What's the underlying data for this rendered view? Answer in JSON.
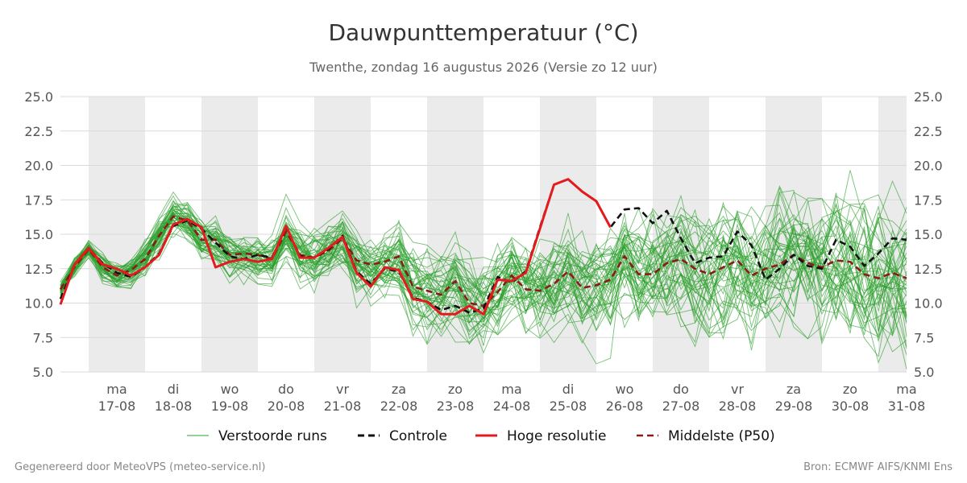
{
  "chart_data": {
    "type": "line",
    "title": "Dauwpunttemperatuur (°C)",
    "subtitle": "Twenthe, zondag 16 augustus 2026 (Versie zo 12 uur)",
    "xlabel": "",
    "ylabel": "",
    "x_range": [
      "2026-08-16T12:00",
      "2026-08-31T12:00"
    ],
    "ylim": [
      5.0,
      25.0
    ],
    "y_ticks": [
      "5.0",
      "7.5",
      "10.0",
      "12.5",
      "15.0",
      "17.5",
      "20.0",
      "22.5",
      "25.0"
    ],
    "x_ticks": [
      {
        "date": "2026-08-17",
        "day": "ma",
        "label": "17-08"
      },
      {
        "date": "2026-08-18",
        "day": "di",
        "label": "18-08"
      },
      {
        "date": "2026-08-19",
        "day": "wo",
        "label": "19-08"
      },
      {
        "date": "2026-08-20",
        "day": "do",
        "label": "20-08"
      },
      {
        "date": "2026-08-21",
        "day": "vr",
        "label": "21-08"
      },
      {
        "date": "2026-08-22",
        "day": "za",
        "label": "22-08"
      },
      {
        "date": "2026-08-23",
        "day": "zo",
        "label": "23-08"
      },
      {
        "date": "2026-08-24",
        "day": "ma",
        "label": "24-08"
      },
      {
        "date": "2026-08-25",
        "day": "di",
        "label": "25-08"
      },
      {
        "date": "2026-08-26",
        "day": "wo",
        "label": "26-08"
      },
      {
        "date": "2026-08-27",
        "day": "do",
        "label": "27-08"
      },
      {
        "date": "2026-08-28",
        "day": "vr",
        "label": "28-08"
      },
      {
        "date": "2026-08-29",
        "day": "za",
        "label": "29-08"
      },
      {
        "date": "2026-08-30",
        "day": "zo",
        "label": "30-08"
      },
      {
        "date": "2026-08-31",
        "day": "ma",
        "label": "31-08"
      }
    ],
    "shaded_days": [
      "2026-08-17",
      "2026-08-19",
      "2026-08-21",
      "2026-08-23",
      "2026-08-25",
      "2026-08-27",
      "2026-08-29",
      "2026-08-31"
    ],
    "grid": true,
    "legend_position": "bottom",
    "series": [
      {
        "name": "Controle",
        "color": "#111111",
        "style": "dashed",
        "x": [
          "2026-08-16T12:00",
          "2026-08-16T18:00",
          "2026-08-17T00:00",
          "2026-08-17T06:00",
          "2026-08-17T12:00",
          "2026-08-17T18:00",
          "2026-08-18T00:00",
          "2026-08-18T06:00",
          "2026-08-18T12:00",
          "2026-08-18T18:00",
          "2026-08-19T00:00",
          "2026-08-19T06:00",
          "2026-08-19T12:00",
          "2026-08-19T18:00",
          "2026-08-20T00:00",
          "2026-08-20T06:00",
          "2026-08-20T12:00",
          "2026-08-20T18:00",
          "2026-08-21T00:00",
          "2026-08-21T06:00",
          "2026-08-21T12:00",
          "2026-08-21T18:00",
          "2026-08-22T00:00",
          "2026-08-22T06:00",
          "2026-08-22T12:00",
          "2026-08-22T18:00",
          "2026-08-23T00:00",
          "2026-08-23T06:00",
          "2026-08-23T12:00",
          "2026-08-23T18:00",
          "2026-08-24T00:00",
          "2026-08-24T06:00",
          "2026-08-24T12:00",
          "2026-08-24T18:00",
          "2026-08-25T00:00",
          "2026-08-25T06:00",
          "2026-08-25T12:00",
          "2026-08-25T18:00",
          "2026-08-26T00:00",
          "2026-08-26T06:00",
          "2026-08-26T12:00",
          "2026-08-26T18:00",
          "2026-08-27T00:00",
          "2026-08-27T06:00",
          "2026-08-27T12:00",
          "2026-08-27T18:00",
          "2026-08-28T00:00",
          "2026-08-28T06:00",
          "2026-08-28T12:00",
          "2026-08-28T18:00",
          "2026-08-29T00:00",
          "2026-08-29T06:00",
          "2026-08-29T12:00",
          "2026-08-29T18:00",
          "2026-08-30T00:00",
          "2026-08-30T06:00",
          "2026-08-30T12:00",
          "2026-08-30T18:00",
          "2026-08-31T00:00",
          "2026-08-31T06:00",
          "2026-08-31T12:00"
        ],
        "values": [
          10.3,
          12.8,
          14.0,
          12.9,
          12.2,
          11.9,
          12.6,
          13.6,
          15.6,
          16.0,
          15.4,
          14.4,
          13.4,
          13.2,
          13.5,
          13.3,
          15.5,
          13.4,
          13.3,
          13.9,
          14.9,
          12.3,
          11.4,
          12.5,
          12.3,
          10.4,
          10.1,
          9.5,
          9.8,
          9.3,
          9.6,
          11.9,
          11.5,
          12.3,
          15.5,
          18.6,
          19.0,
          18.1,
          17.4,
          15.5,
          16.8,
          16.9,
          15.8,
          16.7,
          14.7,
          12.9,
          13.3,
          13.4,
          15.2,
          14.2,
          11.7,
          12.5,
          13.5,
          12.7,
          12.5,
          14.6,
          14.1,
          12.7,
          13.6,
          14.7,
          14.6
        ]
      },
      {
        "name": "Hoge resolutie",
        "color": "#e41a1c",
        "style": "solid",
        "x": [
          "2026-08-16T12:00",
          "2026-08-16T18:00",
          "2026-08-17T00:00",
          "2026-08-17T06:00",
          "2026-08-17T12:00",
          "2026-08-17T18:00",
          "2026-08-18T00:00",
          "2026-08-18T06:00",
          "2026-08-18T12:00",
          "2026-08-18T18:00",
          "2026-08-19T00:00",
          "2026-08-19T06:00",
          "2026-08-19T12:00",
          "2026-08-19T18:00",
          "2026-08-20T00:00",
          "2026-08-20T06:00",
          "2026-08-20T12:00",
          "2026-08-20T18:00",
          "2026-08-21T00:00",
          "2026-08-21T06:00",
          "2026-08-21T12:00",
          "2026-08-21T18:00",
          "2026-08-22T00:00",
          "2026-08-22T06:00",
          "2026-08-22T12:00",
          "2026-08-22T18:00",
          "2026-08-23T00:00",
          "2026-08-23T06:00",
          "2026-08-23T12:00",
          "2026-08-23T18:00",
          "2026-08-24T00:00",
          "2026-08-24T06:00",
          "2026-08-24T12:00",
          "2026-08-24T18:00",
          "2026-08-25T00:00",
          "2026-08-25T06:00",
          "2026-08-25T12:00",
          "2026-08-25T18:00",
          "2026-08-26T00:00",
          "2026-08-26T06:00"
        ],
        "values": [
          9.9,
          12.8,
          14.0,
          12.8,
          12.5,
          12.0,
          12.6,
          13.5,
          15.7,
          16.1,
          15.5,
          12.6,
          13.0,
          13.2,
          13.0,
          13.2,
          15.6,
          13.3,
          13.3,
          14.0,
          14.8,
          12.2,
          11.2,
          12.6,
          12.4,
          10.3,
          10.1,
          9.2,
          9.2,
          9.8,
          9.2,
          11.7,
          11.6,
          12.2,
          15.4,
          18.6,
          19.0,
          18.1,
          17.4,
          15.5
        ]
      },
      {
        "name": "Middelste (P50)",
        "color": "#8b1a1a",
        "style": "dashed",
        "x": [
          "2026-08-16T12:00",
          "2026-08-16T18:00",
          "2026-08-17T00:00",
          "2026-08-17T06:00",
          "2026-08-17T12:00",
          "2026-08-17T18:00",
          "2026-08-18T00:00",
          "2026-08-18T06:00",
          "2026-08-18T12:00",
          "2026-08-18T18:00",
          "2026-08-19T00:00",
          "2026-08-19T06:00",
          "2026-08-19T12:00",
          "2026-08-19T18:00",
          "2026-08-20T00:00",
          "2026-08-20T06:00",
          "2026-08-20T12:00",
          "2026-08-20T18:00",
          "2026-08-21T00:00",
          "2026-08-21T06:00",
          "2026-08-21T12:00",
          "2026-08-21T18:00",
          "2026-08-22T00:00",
          "2026-08-22T06:00",
          "2026-08-22T12:00",
          "2026-08-22T18:00",
          "2026-08-23T00:00",
          "2026-08-23T06:00",
          "2026-08-23T12:00",
          "2026-08-23T18:00",
          "2026-08-24T00:00",
          "2026-08-24T06:00",
          "2026-08-24T12:00",
          "2026-08-24T18:00",
          "2026-08-25T00:00",
          "2026-08-25T06:00",
          "2026-08-25T12:00",
          "2026-08-25T18:00",
          "2026-08-26T00:00",
          "2026-08-26T06:00",
          "2026-08-26T12:00",
          "2026-08-26T18:00",
          "2026-08-27T00:00",
          "2026-08-27T06:00",
          "2026-08-27T12:00",
          "2026-08-27T18:00",
          "2026-08-28T00:00",
          "2026-08-28T06:00",
          "2026-08-28T12:00",
          "2026-08-28T18:00",
          "2026-08-29T00:00",
          "2026-08-29T06:00",
          "2026-08-29T12:00",
          "2026-08-29T18:00",
          "2026-08-30T00:00",
          "2026-08-30T06:00",
          "2026-08-30T12:00",
          "2026-08-30T18:00",
          "2026-08-31T00:00",
          "2026-08-31T06:00",
          "2026-08-31T12:00"
        ],
        "values": [
          11.0,
          12.6,
          13.9,
          12.6,
          12.0,
          12.4,
          13.2,
          14.9,
          16.3,
          16.0,
          14.6,
          14.6,
          13.5,
          13.6,
          13.5,
          13.2,
          15.2,
          13.5,
          13.3,
          13.8,
          14.7,
          13.1,
          12.8,
          13.0,
          13.4,
          11.2,
          10.9,
          10.6,
          11.6,
          10.0,
          9.8,
          10.8,
          12.0,
          11.0,
          10.9,
          11.4,
          12.3,
          11.1,
          11.3,
          11.7,
          13.4,
          12.1,
          12.1,
          12.9,
          13.2,
          12.5,
          12.1,
          12.6,
          13.1,
          12.0,
          12.5,
          12.8,
          13.5,
          12.9,
          12.6,
          13.1,
          13.0,
          12.1,
          11.8,
          12.2,
          11.8
        ]
      }
    ],
    "ensemble": {
      "name": "Verstoorde runs",
      "color": "#2ca02c",
      "members": 50,
      "x_start": "2026-08-16T12:00",
      "x_step_hours": 6,
      "steps": 61
    }
  },
  "footer": {
    "left": "Gegenereerd door MeteoVPS (meteo-service.nl)",
    "right": "Bron: ECMWF AIFS/KNMI Ens"
  }
}
